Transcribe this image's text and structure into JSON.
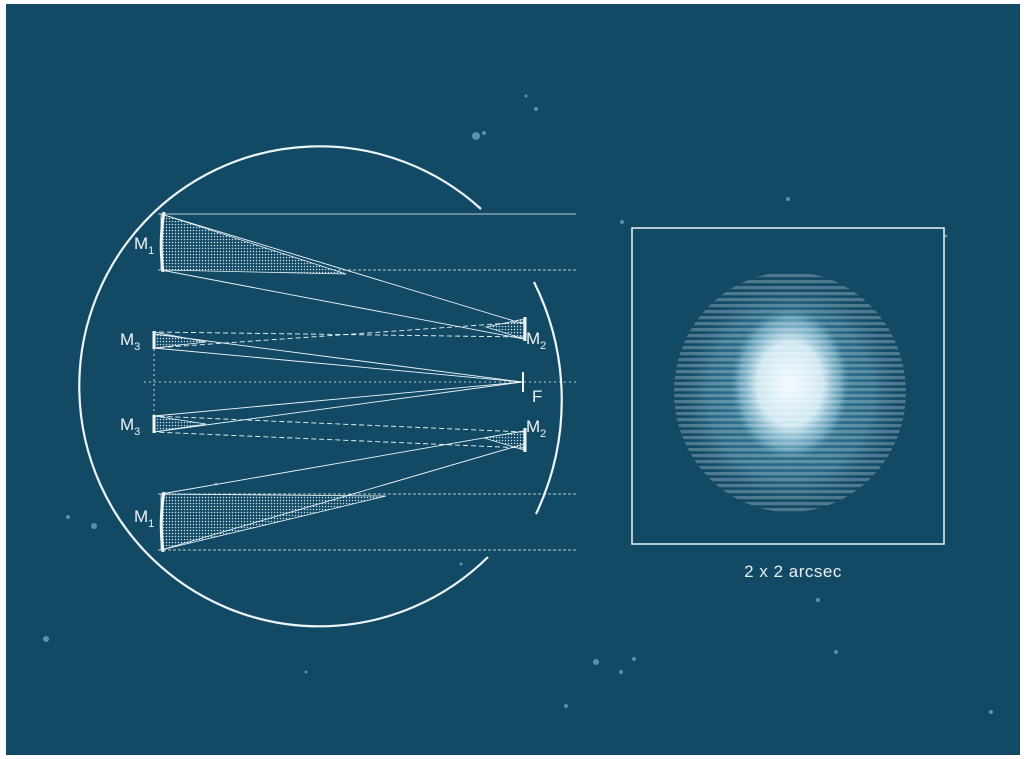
{
  "colors": {
    "background": "#124a66",
    "line": "#eef5f7",
    "speckle": "#5fa7c9",
    "psf_core": "#f2fbff",
    "psf_halo": "#3f8aa9"
  },
  "labels": {
    "m1_top": {
      "letter": "M",
      "sub": "1"
    },
    "m3_upper": {
      "letter": "M",
      "sub": "3"
    },
    "m3_lower": {
      "letter": "M",
      "sub": "3"
    },
    "m1_bottom": {
      "letter": "M",
      "sub": "1"
    },
    "m2_upper": {
      "letter": "M",
      "sub": "2"
    },
    "m2_lower": {
      "letter": "M",
      "sub": "2"
    },
    "focus": "F"
  },
  "psf_caption": "2 x 2 arcsec"
}
